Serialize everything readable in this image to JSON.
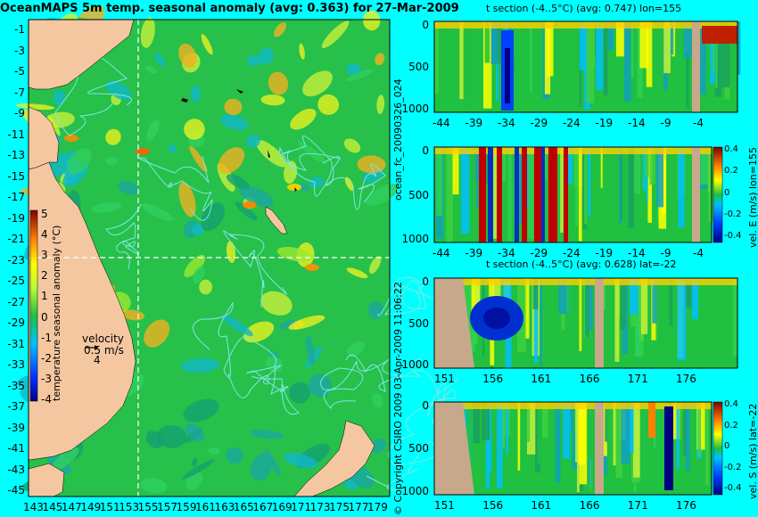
{
  "chart_data": [
    {
      "type": "heatmap",
      "panel": "map",
      "title": "OceanMAPS 5m temp. seasonal anomaly (avg: 0.363) for 27-Mar-2009",
      "lat_ticks": [
        "-1",
        "-3",
        "-5",
        "-7",
        "-9",
        "-11",
        "-13",
        "-15",
        "-17",
        "-19",
        "-21",
        "-23",
        "-25",
        "-27",
        "-29",
        "-31",
        "-33",
        "-35",
        "-37",
        "-39",
        "-41",
        "-43",
        "-45"
      ],
      "lon_ticks": [
        "143",
        "145",
        "147",
        "149",
        "151",
        "153",
        "155",
        "157",
        "159",
        "161",
        "163",
        "165",
        "167",
        "169",
        "171",
        "173",
        "175",
        "177",
        "179"
      ],
      "section_lines": {
        "lon": 155,
        "lat": -22
      },
      "colorbar": {
        "label": "temperature seasonal anomaly (°C)",
        "ticks": [
          "5",
          "4",
          "3",
          "2",
          "1",
          "0",
          "-1",
          "-2",
          "-3",
          "-4"
        ],
        "range": [
          -4,
          5
        ]
      },
      "velocity_legend": {
        "title": "velocity",
        "value": "0.5 m/s",
        "scale": "4"
      }
    },
    {
      "type": "heatmap",
      "panel": "t-section-lon",
      "title": "t section (-4..5°C) (avg: 0.747) lon=155",
      "x_ticks": [
        "-44",
        "-39",
        "-34",
        "-29",
        "-24",
        "-19",
        "-14",
        "-9",
        "-4"
      ],
      "y_ticks": [
        "0",
        "500",
        "1000"
      ],
      "ylim": [
        0,
        1050
      ]
    },
    {
      "type": "heatmap",
      "panel": "vel-e-section-lon",
      "x_ticks": [
        "-44",
        "-39",
        "-34",
        "-29",
        "-24",
        "-19",
        "-14",
        "-9",
        "-4"
      ],
      "y_ticks": [
        "0",
        "500",
        "1000"
      ],
      "ylim": [
        0,
        1050
      ],
      "colorbar": {
        "label": "vel. E (m/s) lon=155",
        "ticks": [
          "0.4",
          "0.2",
          "0",
          "-0.2",
          "-0.4"
        ],
        "range": [
          -0.4,
          0.4
        ]
      }
    },
    {
      "type": "heatmap",
      "panel": "t-section-lat",
      "title": "t section (-4..5°C) (avg: 0.628) lat=-22",
      "x_ticks": [
        "151",
        "156",
        "161",
        "166",
        "171",
        "176"
      ],
      "y_ticks": [
        "0",
        "500",
        "1000"
      ],
      "ylim": [
        0,
        1050
      ]
    },
    {
      "type": "heatmap",
      "panel": "vel-s-section-lat",
      "x_ticks": [
        "151",
        "156",
        "161",
        "166",
        "171",
        "176"
      ],
      "y_ticks": [
        "0",
        "500",
        "1000"
      ],
      "ylim": [
        0,
        1050
      ],
      "colorbar": {
        "label": "vel. S (m/s) lat=-22",
        "ticks": [
          "0.4",
          "0.2",
          "0",
          "-0.2",
          "-0.4"
        ],
        "range": [
          -0.4,
          0.4
        ]
      }
    }
  ],
  "side_text": {
    "forecast_id": "ocean_fc_20090326_024",
    "copyright": "© Copyright CSIRO 2009   03-Apr-2009 11:06:22"
  },
  "colors": {
    "background": "#00ffff",
    "land": "#f4c7a0",
    "section_land": "#c8a88a",
    "ocean_base": "#27c04a",
    "contour": "#7fe6e6"
  }
}
